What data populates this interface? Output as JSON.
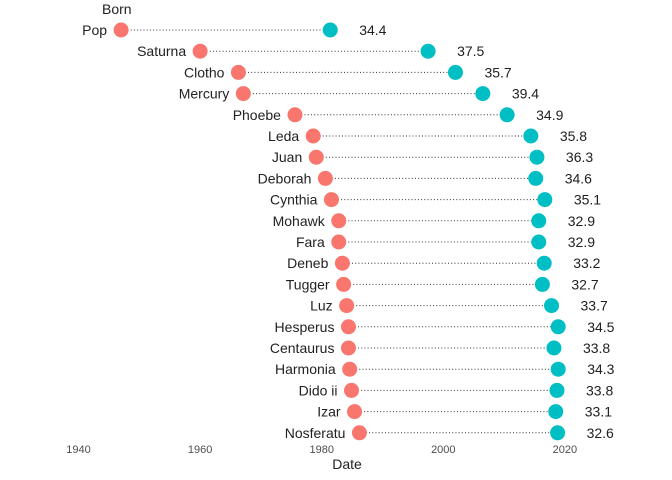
{
  "chart_data": {
    "type": "dumbbell",
    "title": "",
    "legend_label": "Born",
    "xlabel": "Date",
    "ylabel": "",
    "xlim": [
      1933,
      2034
    ],
    "x_ticks": [
      1940,
      1960,
      1980,
      2000,
      2020
    ],
    "colors": {
      "start": "#f8766d",
      "end": "#00bfc4",
      "connector": "#333333"
    },
    "rows": [
      {
        "name": "Pop",
        "born": 1947,
        "end": 1981.4,
        "value": "34.4"
      },
      {
        "name": "Saturna",
        "born": 1960,
        "end": 1997.5,
        "value": "37.5"
      },
      {
        "name": "Clotho",
        "born": 1966.3,
        "end": 2002.0,
        "value": "35.7"
      },
      {
        "name": "Mercury",
        "born": 1967.1,
        "end": 2006.5,
        "value": "39.4"
      },
      {
        "name": "Phoebe",
        "born": 1975.6,
        "end": 2010.5,
        "value": "34.9"
      },
      {
        "name": "Leda",
        "born": 1978.6,
        "end": 2014.4,
        "value": "35.8"
      },
      {
        "name": "Juan",
        "born": 1979.1,
        "end": 2015.4,
        "value": "36.3"
      },
      {
        "name": "Deborah",
        "born": 1980.6,
        "end": 2015.2,
        "value": "34.6"
      },
      {
        "name": "Cynthia",
        "born": 1981.6,
        "end": 2016.7,
        "value": "35.1"
      },
      {
        "name": "Mohawk",
        "born": 1982.8,
        "end": 2015.7,
        "value": "32.9"
      },
      {
        "name": "Fara",
        "born": 1982.8,
        "end": 2015.7,
        "value": "32.9"
      },
      {
        "name": "Deneb",
        "born": 1983.4,
        "end": 2016.6,
        "value": "33.2"
      },
      {
        "name": "Tugger",
        "born": 1983.6,
        "end": 2016.3,
        "value": "32.7"
      },
      {
        "name": "Luz",
        "born": 1984.1,
        "end": 2017.8,
        "value": "33.7"
      },
      {
        "name": "Hesperus",
        "born": 1984.4,
        "end": 2018.9,
        "value": "34.5"
      },
      {
        "name": "Centaurus",
        "born": 1984.4,
        "end": 2018.2,
        "value": "33.8"
      },
      {
        "name": "Harmonia",
        "born": 1984.6,
        "end": 2018.9,
        "value": "34.3"
      },
      {
        "name": "Dido ii",
        "born": 1984.9,
        "end": 2018.7,
        "value": "33.8"
      },
      {
        "name": "Izar",
        "born": 1985.4,
        "end": 2018.5,
        "value": "33.1"
      },
      {
        "name": "Nosferatu",
        "born": 1986.2,
        "end": 2018.8,
        "value": "32.6"
      }
    ]
  }
}
